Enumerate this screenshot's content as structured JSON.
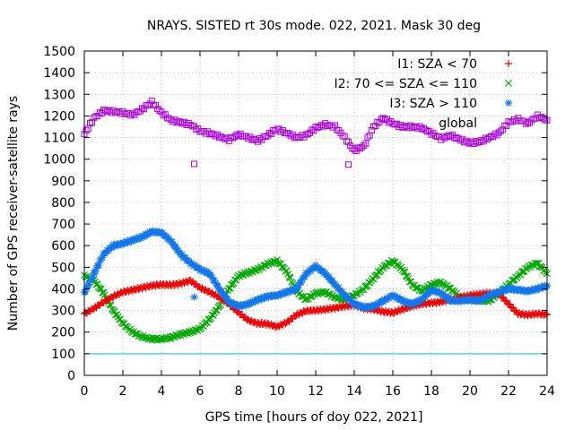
{
  "chart_data": {
    "type": "scatter",
    "title": "NRAYS. SISTED rt 30s mode. 022, 2021. Mask 30 deg",
    "xlabel": "GPS time [hours of doy 022, 2021]",
    "ylabel": "Number of GPS receiver-satellite rays",
    "xlim": [
      0,
      24
    ],
    "ylim": [
      0,
      1500
    ],
    "x_ticks": [
      "0",
      "2",
      "4",
      "6",
      "8",
      "10",
      "12",
      "14",
      "16",
      "18",
      "20",
      "22",
      "24"
    ],
    "y_ticks": [
      "0",
      "100",
      "200",
      "300",
      "400",
      "500",
      "600",
      "700",
      "800",
      "900",
      "1000",
      "1100",
      "1200",
      "1300",
      "1400",
      "1500"
    ],
    "grid": "dotted",
    "legend_position": "top-right",
    "threshold_line": {
      "y": 100,
      "color": "#00c0c0"
    },
    "series": [
      {
        "name": "I1: SZA < 70",
        "marker": "+",
        "color": "#ee0000",
        "x": [
          0,
          0.5,
          1,
          1.5,
          2,
          2.5,
          3,
          3.5,
          4,
          4.5,
          5,
          5.5,
          6,
          6.5,
          7,
          7.5,
          8,
          8.5,
          9,
          9.5,
          10,
          10.5,
          11,
          11.5,
          12,
          12.5,
          13,
          13.5,
          14,
          14.5,
          15,
          15.5,
          16,
          16.5,
          17,
          17.5,
          18,
          18.5,
          19,
          19.5,
          20,
          20.5,
          21,
          21.5,
          22,
          22.5,
          23,
          23.5,
          24
        ],
        "y": [
          285,
          310,
          340,
          365,
          385,
          395,
          405,
          415,
          420,
          418,
          425,
          438,
          405,
          385,
          360,
          330,
          290,
          255,
          240,
          238,
          225,
          245,
          280,
          298,
          300,
          305,
          312,
          320,
          325,
          310,
          305,
          295,
          290,
          305,
          320,
          330,
          335,
          340,
          350,
          360,
          370,
          375,
          380,
          378,
          330,
          285,
          280,
          285,
          280
        ]
      },
      {
        "name": "I2: 70 <= SZA <= 110",
        "marker": "x",
        "color": "#00aa00",
        "x": [
          0,
          0.5,
          1,
          1.5,
          2,
          2.5,
          3,
          3.5,
          4,
          4.5,
          5,
          5.5,
          6,
          6.5,
          7,
          7.5,
          8,
          8.5,
          9,
          9.5,
          10,
          10.5,
          11,
          11.5,
          12,
          12.5,
          13,
          13.5,
          14,
          14.5,
          15,
          15.5,
          16,
          16.5,
          17,
          17.5,
          18,
          18.5,
          19,
          19.5,
          20,
          20.5,
          21,
          21.5,
          22,
          22.5,
          23,
          23.5,
          24
        ],
        "y": [
          460,
          440,
          380,
          300,
          240,
          200,
          178,
          168,
          168,
          175,
          190,
          200,
          215,
          260,
          320,
          400,
          460,
          475,
          490,
          515,
          530,
          480,
          390,
          350,
          380,
          385,
          360,
          350,
          370,
          400,
          450,
          500,
          530,
          490,
          420,
          390,
          420,
          430,
          400,
          360,
          350,
          345,
          345,
          380,
          420,
          460,
          500,
          520,
          470
        ]
      },
      {
        "name": "I3: SZA > 110",
        "marker": "*",
        "color": "#1177ee",
        "x": [
          0,
          0.5,
          1,
          1.5,
          2,
          2.5,
          3,
          3.5,
          4,
          4.5,
          5,
          5.5,
          6,
          6.5,
          7,
          7.5,
          8,
          8.5,
          9,
          9.5,
          10,
          10.5,
          11,
          11.5,
          12,
          12.5,
          13,
          13.5,
          14,
          14.5,
          15,
          15.5,
          16,
          16.5,
          17,
          17.5,
          18,
          18.5,
          19,
          19.5,
          20,
          20.5,
          21,
          21.5,
          22,
          22.5,
          23,
          23.5,
          24
        ],
        "y": [
          380,
          470,
          560,
          600,
          610,
          625,
          640,
          665,
          660,
          620,
          560,
          520,
          490,
          470,
          400,
          340,
          320,
          330,
          350,
          365,
          370,
          385,
          400,
          470,
          505,
          470,
          420,
          370,
          330,
          315,
          320,
          345,
          370,
          345,
          330,
          350,
          395,
          380,
          345,
          345,
          350,
          345,
          370,
          385,
          400,
          395,
          390,
          400,
          415
        ]
      },
      {
        "name": "global",
        "marker": "square",
        "color": "#aa00dd",
        "x": [
          0,
          0.5,
          1,
          1.5,
          2,
          2.5,
          3,
          3.5,
          4,
          4.5,
          5,
          5.5,
          6,
          6.5,
          7,
          7.5,
          8,
          8.5,
          9,
          9.5,
          10,
          10.5,
          11,
          11.5,
          12,
          12.5,
          13,
          13.5,
          14,
          14.5,
          15,
          15.5,
          16,
          16.5,
          17,
          17.5,
          18,
          18.5,
          19,
          19.5,
          20,
          20.5,
          21,
          21.5,
          22,
          22.5,
          23,
          23.5,
          24
        ],
        "y": [
          1115,
          1190,
          1225,
          1220,
          1215,
          1205,
          1230,
          1265,
          1215,
          1180,
          1170,
          1160,
          1130,
          1120,
          1105,
          1090,
          1115,
          1100,
          1085,
          1110,
          1140,
          1120,
          1100,
          1110,
          1145,
          1160,
          1150,
          1100,
          1040,
          1060,
          1150,
          1190,
          1165,
          1150,
          1150,
          1145,
          1120,
          1095,
          1110,
          1090,
          1075,
          1080,
          1100,
          1120,
          1170,
          1185,
          1165,
          1200,
          1180
        ]
      }
    ],
    "outliers": [
      {
        "series": "global",
        "x": 5.7,
        "y": 978
      },
      {
        "series": "global",
        "x": 13.7,
        "y": 975
      },
      {
        "series": "I3: SZA > 110",
        "x": 5.7,
        "y": 362
      }
    ]
  }
}
